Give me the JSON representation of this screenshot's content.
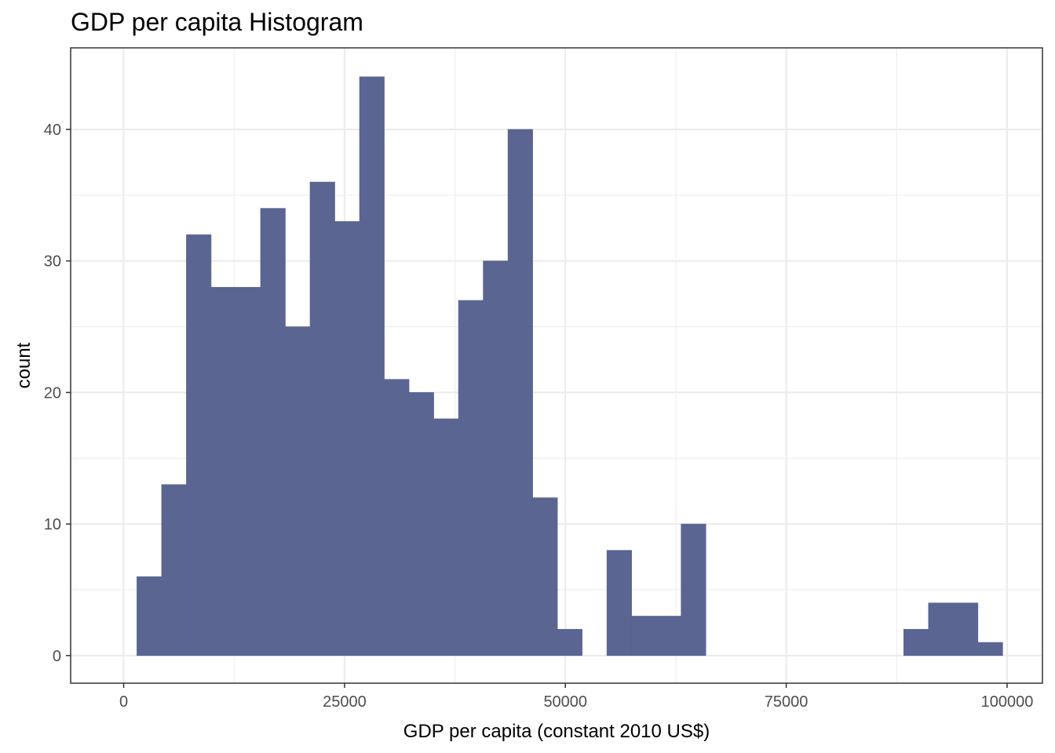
{
  "chart_data": {
    "type": "bar",
    "title": "GDP per capita Histogram",
    "xlabel": "GDP per capita (constant 2010 US$)",
    "ylabel": "count",
    "xlim": [
      -6000,
      104000
    ],
    "ylim": [
      -2.1,
      46.2
    ],
    "x_ticks": [
      0,
      25000,
      50000,
      75000,
      100000
    ],
    "y_ticks": [
      0,
      10,
      20,
      30,
      40
    ],
    "bin_width": 2800,
    "bin_starts": [
      1500,
      4300,
      7100,
      9900,
      12700,
      15500,
      18300,
      21100,
      23900,
      26700,
      29500,
      32300,
      35100,
      37900,
      40700,
      43500,
      46300,
      49100,
      51900,
      54700,
      57500,
      60300,
      63100,
      65900,
      68700,
      71500,
      74300,
      77100,
      79900,
      82700,
      85500,
      88300,
      91100,
      93900,
      96700
    ],
    "values": [
      6,
      13,
      32,
      28,
      28,
      34,
      25,
      36,
      33,
      44,
      21,
      20,
      18,
      27,
      30,
      40,
      12,
      2,
      0,
      8,
      3,
      3,
      10,
      0,
      0,
      0,
      0,
      0,
      0,
      0,
      0,
      2,
      4,
      4,
      1
    ],
    "bar_color": "#5A6591",
    "grid": true,
    "panel_border_color": "#333333",
    "grid_color": "#EBEBEB"
  }
}
